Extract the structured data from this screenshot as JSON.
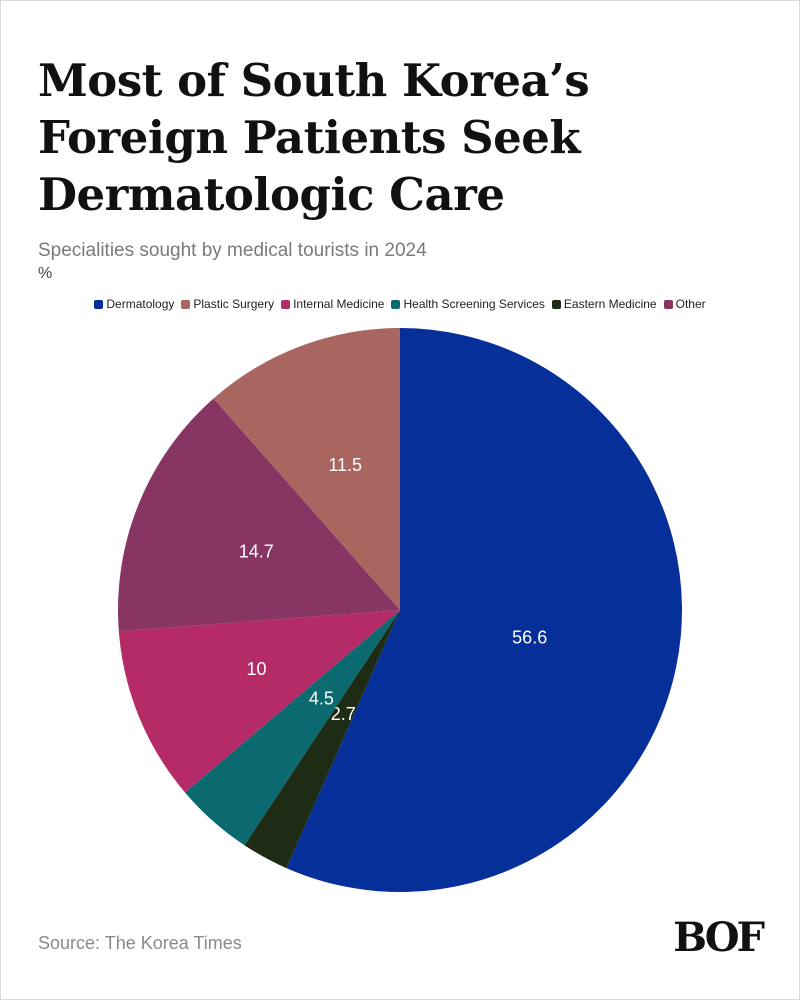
{
  "header": {
    "title": "Most of South Korea’s Foreign Patients Seek Dermatologic Care",
    "subtitle": "Specialities sought by medical tourists in 2024",
    "unit": "%"
  },
  "footer": {
    "source": "Source: The Korea Times",
    "logo_text": "BOF"
  },
  "chart_data": {
    "type": "pie",
    "title": "Most of South Korea’s Foreign Patients Seek Dermatologic Care",
    "subtitle": "Specialities sought by medical tourists in 2024",
    "legend_position": "top",
    "slices": [
      {
        "label": "Dermatology",
        "value": 56.6,
        "color": "#072f9a"
      },
      {
        "label": "Eastern Medicine",
        "value": 2.7,
        "color": "#1f2c15"
      },
      {
        "label": "Health Screening Services",
        "value": 4.5,
        "color": "#0b6a70"
      },
      {
        "label": "Internal Medicine",
        "value": 10,
        "color": "#b52b67"
      },
      {
        "label": "Other",
        "value": 14.7,
        "color": "#873562"
      },
      {
        "label": "Plastic Surgery",
        "value": 11.5,
        "color": "#a96560"
      }
    ],
    "legend": [
      {
        "label": "Dermatology",
        "color": "#072f9a"
      },
      {
        "label": "Plastic Surgery",
        "color": "#a96560"
      },
      {
        "label": "Internal Medicine",
        "color": "#b52b67"
      },
      {
        "label": "Health Screening Services",
        "color": "#0b6a70"
      },
      {
        "label": "Eastern Medicine",
        "color": "#1f2c15"
      },
      {
        "label": "Other",
        "color": "#873562"
      }
    ]
  }
}
